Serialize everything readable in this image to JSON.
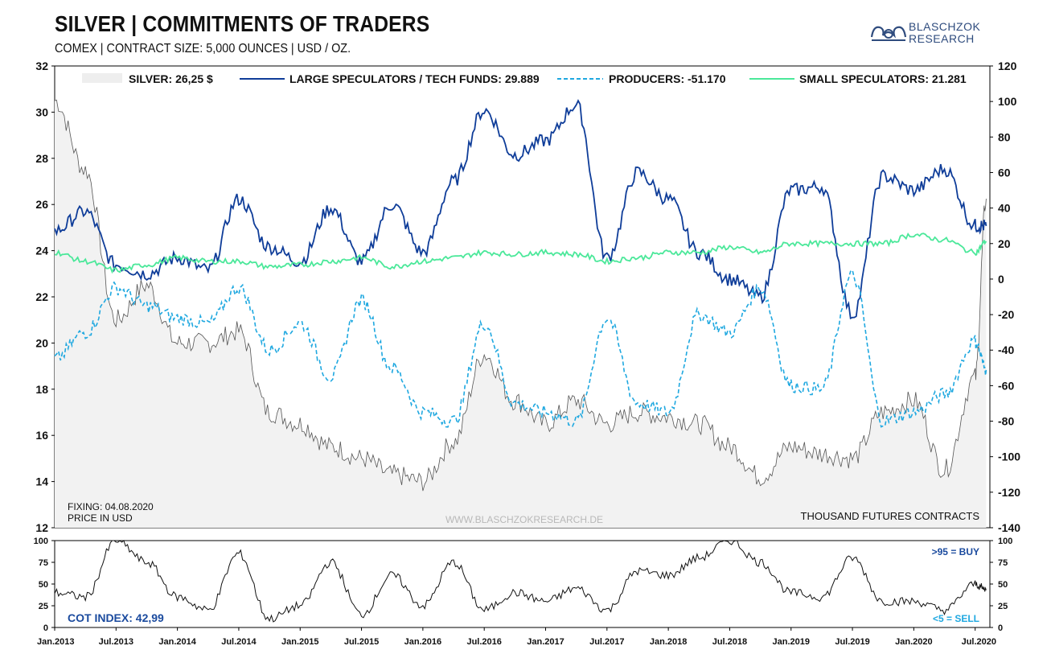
{
  "header": {
    "title": "SILVER | COMMITMENTS OF TRADERS",
    "subtitle": "COMEX | CONTRACT SIZE: 5,000 OUNCES | USD / OZ.",
    "logo_line1": "BLASCHZOK",
    "logo_line2": "RESEARCH"
  },
  "colors": {
    "silver_fill": "#f2f2f2",
    "silver_line": "#555555",
    "large_spec": "#0f3d99",
    "producers": "#1fa8e0",
    "small_spec": "#4be89a",
    "cot_index": "#111111",
    "buy_label": "#1a4a9e",
    "sell_label": "#1fa8e0"
  },
  "legend": [
    {
      "label": "SILVER: 26,25 $",
      "style": "area"
    },
    {
      "label": "LARGE SPECULATORS / TECH FUNDS: 29.889",
      "style": "solid-dark"
    },
    {
      "label": "PRODUCERS: -51.170",
      "style": "dashed"
    },
    {
      "label": "SMALL SPECULATORS: 21.281",
      "style": "solid-green"
    }
  ],
  "annotations": {
    "fixing": "FIXING: 04.08.2020",
    "price_unit": "PRICE IN USD",
    "watermark": "WWW.BLASCHZOKRESEARCH.DE",
    "right_unit": "THOUSAND FUTURES CONTRACTS",
    "cot_index": "COT INDEX: 42,99",
    "buy": ">95 = BUY",
    "sell": "<5 = SELL"
  },
  "chart_data": [
    {
      "type": "line",
      "title": "SILVER | COMMITMENTS OF TRADERS",
      "x_ticks": [
        "Jan.2013",
        "Jul.2013",
        "Jan.2014",
        "Jul.2014",
        "Jan.2015",
        "Jul.2015",
        "Jan.2016",
        "Jul.2016",
        "Jan.2017",
        "Jul.2017",
        "Jan.2018",
        "Jul.2018",
        "Jan.2019",
        "Jul.2019",
        "Jan.2020",
        "Jul.2020"
      ],
      "x_range": [
        "2013-01",
        "2020-08"
      ],
      "y_left": {
        "label": "PRICE IN USD",
        "range": [
          12,
          32
        ],
        "ticks": [
          12,
          14,
          16,
          18,
          20,
          22,
          24,
          26,
          28,
          30,
          32
        ]
      },
      "y_right": {
        "label": "THOUSAND FUTURES CONTRACTS",
        "range": [
          -140,
          120
        ],
        "ticks": [
          -140,
          -120,
          -100,
          -80,
          -60,
          -40,
          -20,
          0,
          20,
          40,
          60,
          80,
          100,
          120
        ]
      },
      "x": [
        2013.0,
        2013.25,
        2013.5,
        2013.75,
        2014.0,
        2014.25,
        2014.5,
        2014.75,
        2015.0,
        2015.25,
        2015.5,
        2015.75,
        2016.0,
        2016.25,
        2016.5,
        2016.75,
        2017.0,
        2017.25,
        2017.5,
        2017.75,
        2018.0,
        2018.25,
        2018.5,
        2018.75,
        2019.0,
        2019.25,
        2019.5,
        2019.75,
        2020.0,
        2020.25,
        2020.5,
        2020.59
      ],
      "series": [
        {
          "name": "SILVER: 26,25 $",
          "axis": "left",
          "style": "area",
          "values": [
            30.5,
            27.5,
            21.0,
            22.5,
            20.0,
            20.0,
            20.5,
            17.0,
            16.5,
            15.5,
            15.0,
            14.3,
            14.0,
            15.7,
            19.5,
            17.5,
            16.5,
            17.5,
            16.5,
            17.0,
            16.8,
            16.5,
            15.5,
            14.2,
            15.5,
            15.2,
            15.0,
            17.0,
            17.5,
            14.5,
            18.5,
            26.25
          ]
        },
        {
          "name": "LARGE SPECULATORS / TECH FUNDS: 29.889",
          "axis": "right",
          "style": "solid",
          "values": [
            27,
            38,
            8,
            3,
            12,
            5,
            45,
            18,
            10,
            40,
            10,
            42,
            15,
            55,
            95,
            70,
            78,
            98,
            12,
            60,
            45,
            15,
            0,
            -10,
            50,
            52,
            -20,
            58,
            50,
            62,
            30,
            29.889
          ]
        },
        {
          "name": "PRODUCERS: -51.170",
          "axis": "right",
          "style": "dashed",
          "values": [
            -45,
            -30,
            -5,
            -15,
            -22,
            -25,
            -5,
            -40,
            -25,
            -55,
            -12,
            -50,
            -75,
            -80,
            -25,
            -70,
            -75,
            -80,
            -22,
            -70,
            -75,
            -20,
            -30,
            -5,
            -60,
            -62,
            2,
            -80,
            -75,
            -65,
            -35,
            -51.17
          ]
        },
        {
          "name": "SMALL SPECULATORS: 21.281",
          "axis": "right",
          "style": "solid",
          "values": [
            15,
            10,
            5,
            8,
            12,
            10,
            10,
            7,
            8,
            10,
            12,
            7,
            10,
            12,
            15,
            14,
            15,
            14,
            10,
            12,
            15,
            15,
            18,
            15,
            20,
            20,
            20,
            20,
            25,
            22,
            15,
            21.281
          ]
        }
      ]
    },
    {
      "type": "line",
      "title": "COT INDEX: 42,99",
      "y_range": [
        0,
        100
      ],
      "y_ticks": [
        0,
        25,
        50,
        75,
        100
      ],
      "x": [
        2013.0,
        2013.25,
        2013.5,
        2013.75,
        2014.0,
        2014.25,
        2014.5,
        2014.75,
        2015.0,
        2015.25,
        2015.5,
        2015.75,
        2016.0,
        2016.25,
        2016.5,
        2016.75,
        2017.0,
        2017.25,
        2017.5,
        2017.75,
        2018.0,
        2018.25,
        2018.5,
        2018.75,
        2019.0,
        2019.25,
        2019.5,
        2019.75,
        2020.0,
        2020.25,
        2020.5,
        2020.59
      ],
      "series": [
        {
          "name": "COT INDEX: 42,99",
          "values": [
            40,
            35,
            100,
            75,
            35,
            20,
            85,
            10,
            25,
            75,
            15,
            60,
            25,
            75,
            20,
            40,
            30,
            45,
            20,
            65,
            60,
            80,
            100,
            75,
            40,
            35,
            80,
            30,
            30,
            20,
            50,
            42.99
          ]
        }
      ]
    }
  ]
}
